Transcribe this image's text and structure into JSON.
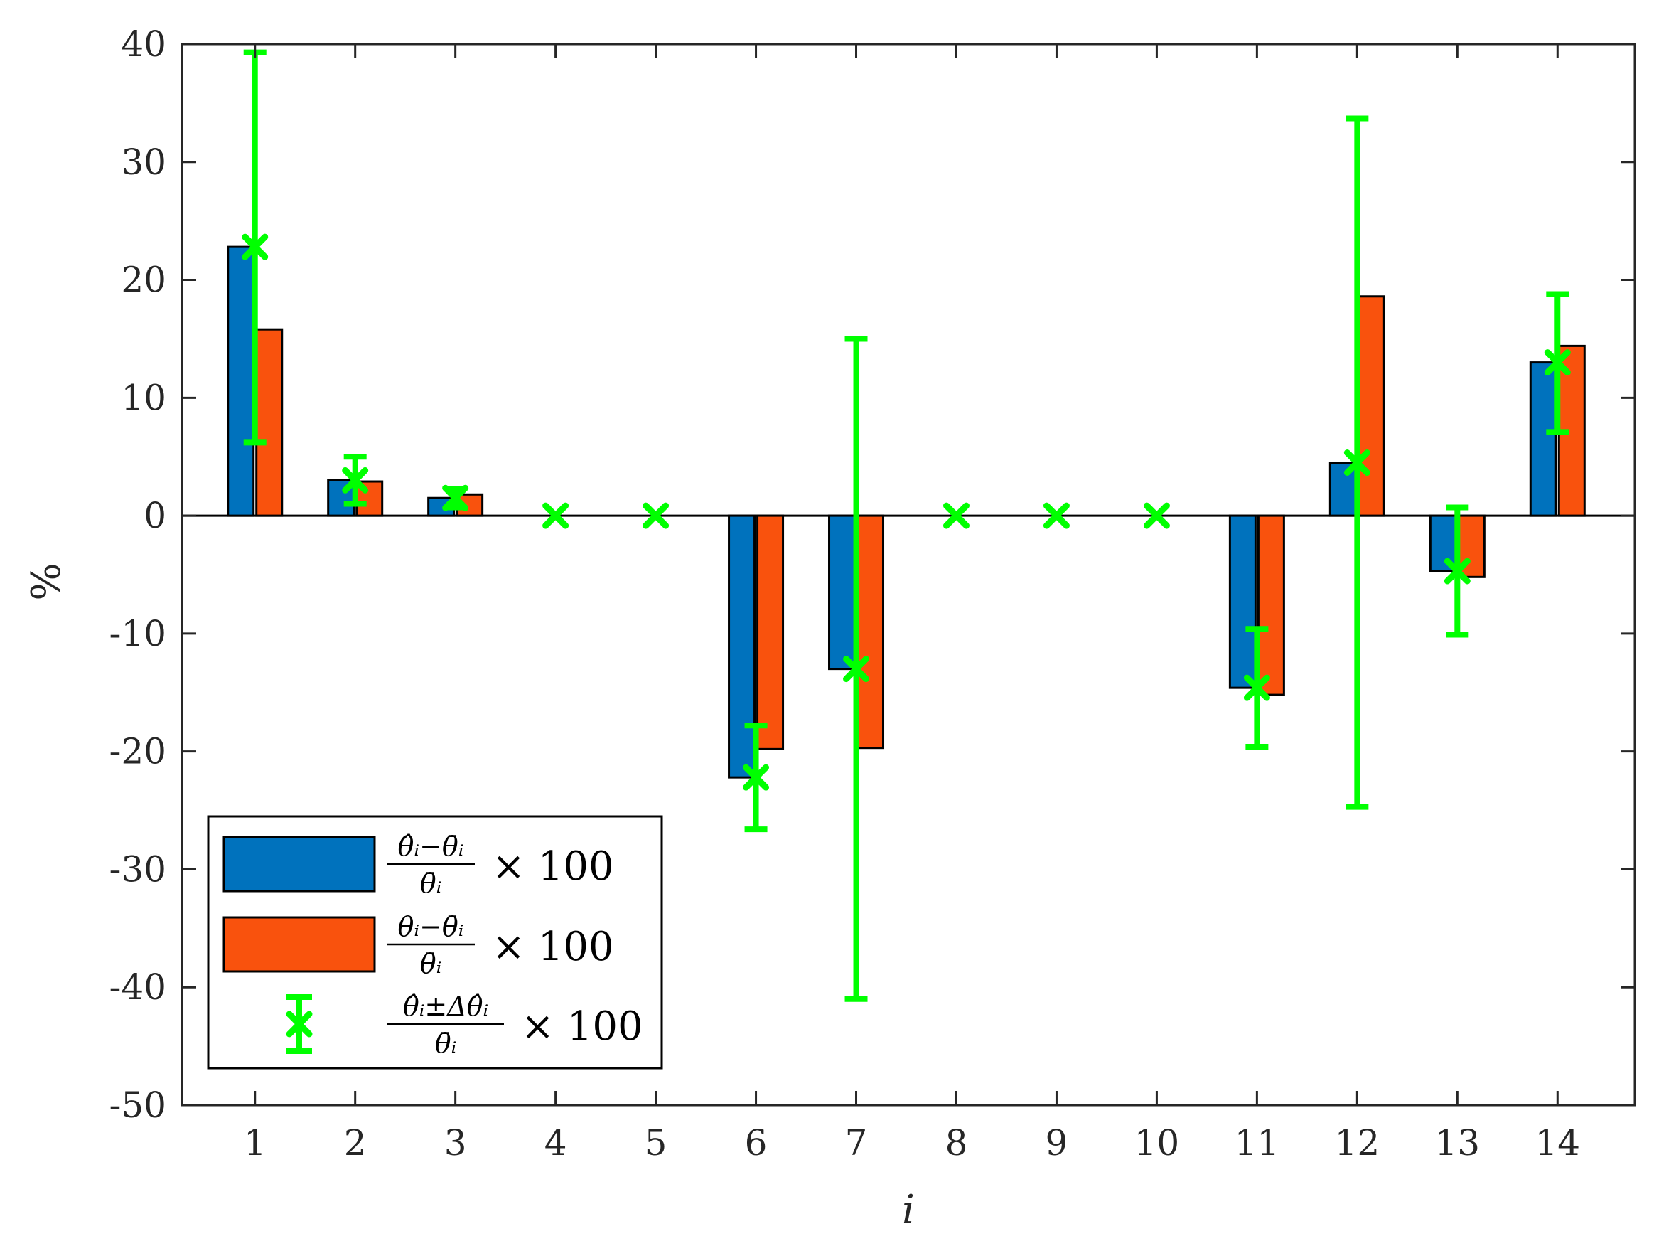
{
  "chart_data": {
    "type": "bar",
    "categories": [
      "1",
      "2",
      "3",
      "4",
      "5",
      "6",
      "7",
      "8",
      "9",
      "10",
      "11",
      "12",
      "13",
      "14"
    ],
    "xlabel": "i",
    "ylabel": "%",
    "ylim": [
      -50,
      40
    ],
    "yticks": [
      "40",
      "30",
      "20",
      "10",
      "0",
      "-10",
      "-20",
      "-30",
      "-40",
      "-50"
    ],
    "grid": false,
    "legend_position": "bottom-left",
    "series": [
      {
        "kind": "bar",
        "color": "#0072BD",
        "values": [
          22.8,
          3.0,
          1.5,
          0,
          0,
          -22.2,
          -13.0,
          0,
          0,
          0,
          -14.6,
          4.5,
          -4.7,
          13.0
        ]
      },
      {
        "kind": "bar",
        "color": "#F9520D",
        "values": [
          15.8,
          2.9,
          1.8,
          0,
          0,
          -19.8,
          -19.7,
          0,
          0,
          0,
          -15.2,
          18.6,
          -5.2,
          14.4
        ]
      },
      {
        "kind": "errorbar",
        "color": "#00FF00",
        "values": [
          22.8,
          3.0,
          1.5,
          0,
          0,
          -22.2,
          -13.0,
          0,
          0,
          0,
          -14.6,
          4.5,
          -4.7,
          13.0
        ],
        "lower": [
          6.2,
          1.0,
          0.7,
          0,
          0,
          -26.6,
          -41.0,
          0,
          0,
          0,
          -19.6,
          -24.7,
          -10.1,
          7.1
        ],
        "upper": [
          39.3,
          5.0,
          2.3,
          0,
          0,
          -17.8,
          15.0,
          0,
          0,
          0,
          -9.6,
          33.7,
          0.7,
          18.8
        ]
      }
    ],
    "legend": [
      {
        "num": "θ̂ᵢ−θ̄ᵢ",
        "den": "θ̄ᵢ",
        "suffix": "× 100"
      },
      {
        "num": "θᵢ−θ̄ᵢ",
        "den": "θ̄ᵢ",
        "suffix": "× 100"
      },
      {
        "num": "θ̂ᵢ±Δθ̂ᵢ",
        "den": "θ̄ᵢ",
        "suffix": "× 100"
      }
    ]
  }
}
